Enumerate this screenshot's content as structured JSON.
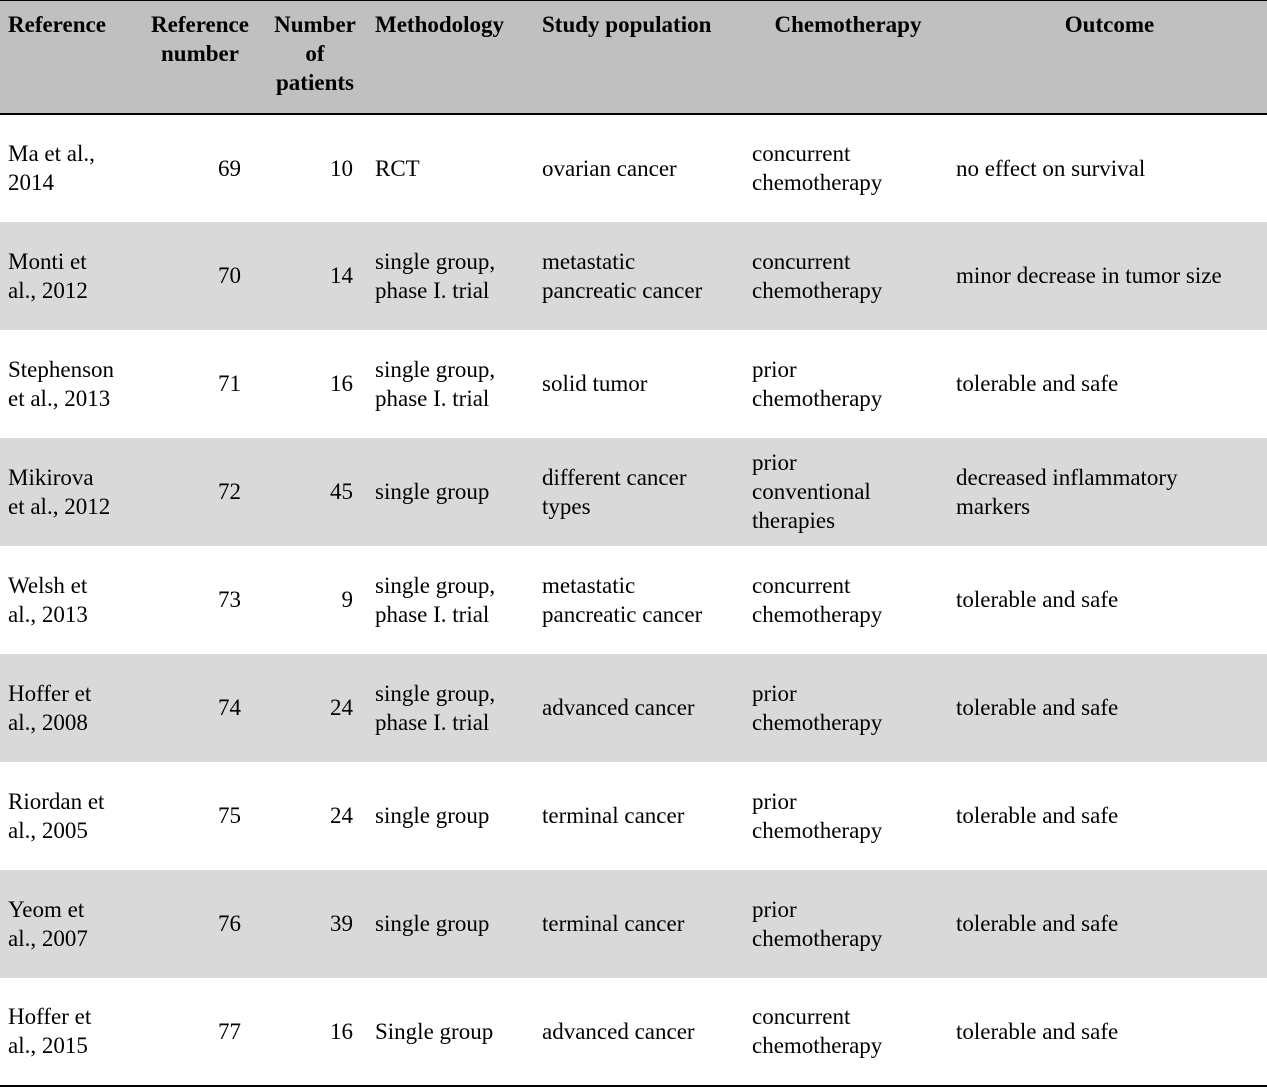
{
  "table": {
    "headers": {
      "reference": "Reference",
      "reference_number_line1": "Reference",
      "reference_number_line2": "number",
      "patients_line1": "Number",
      "patients_line2": "of",
      "patients_line3": "patients",
      "methodology": "Methodology",
      "study_population": "Study population",
      "chemotherapy": "Chemotherapy",
      "outcome": "Outcome"
    },
    "colors": {
      "header_bg": "#c0c0c0",
      "shaded_row_bg": "#d9d9d9",
      "plain_row_bg": "#ffffff"
    },
    "rows": [
      {
        "reference": [
          "Ma et al.,",
          "2014"
        ],
        "ref_number": "69",
        "patients": "10",
        "methodology": [
          "RCT"
        ],
        "population": [
          "ovarian cancer"
        ],
        "chemotherapy": [
          "concurrent",
          "chemotherapy"
        ],
        "outcome": [
          "no effect on survival"
        ]
      },
      {
        "reference": [
          "Monti et",
          "al., 2012"
        ],
        "ref_number": "70",
        "patients": "14",
        "methodology": [
          "single group,",
          "phase I. trial"
        ],
        "population": [
          "metastatic",
          "pancreatic cancer"
        ],
        "chemotherapy": [
          "concurrent",
          "chemotherapy"
        ],
        "outcome": [
          "minor decrease in tumor size"
        ]
      },
      {
        "reference": [
          "Stephenson",
          "et al., 2013"
        ],
        "ref_number": "71",
        "patients": "16",
        "methodology": [
          "single group,",
          "phase I. trial"
        ],
        "population": [
          "solid tumor"
        ],
        "chemotherapy": [
          "prior",
          "chemotherapy"
        ],
        "outcome": [
          "tolerable and safe"
        ]
      },
      {
        "reference": [
          "Mikirova",
          "et al., 2012"
        ],
        "ref_number": "72",
        "patients": "45",
        "methodology": [
          "single group"
        ],
        "population": [
          "different cancer",
          "types"
        ],
        "chemotherapy": [
          "prior",
          "conventional",
          "therapies"
        ],
        "outcome": [
          "decreased inflammatory",
          "markers"
        ]
      },
      {
        "reference": [
          "Welsh et",
          "al., 2013"
        ],
        "ref_number": "73",
        "patients": "9",
        "methodology": [
          "single group,",
          "phase I. trial"
        ],
        "population": [
          "metastatic",
          "pancreatic cancer"
        ],
        "chemotherapy": [
          "concurrent",
          "chemotherapy"
        ],
        "outcome": [
          "tolerable and safe"
        ]
      },
      {
        "reference": [
          "Hoffer et",
          "al., 2008"
        ],
        "ref_number": "74",
        "patients": "24",
        "methodology": [
          "single group,",
          "phase I. trial"
        ],
        "population": [
          "advanced cancer"
        ],
        "chemotherapy": [
          "prior",
          "chemotherapy"
        ],
        "outcome": [
          "tolerable and safe"
        ]
      },
      {
        "reference": [
          "Riordan et",
          "al., 2005"
        ],
        "ref_number": "75",
        "patients": "24",
        "methodology": [
          "single group"
        ],
        "population": [
          "terminal cancer"
        ],
        "chemotherapy": [
          "prior",
          "chemotherapy"
        ],
        "outcome": [
          "tolerable and safe"
        ]
      },
      {
        "reference": [
          "Yeom et",
          "al., 2007"
        ],
        "ref_number": "76",
        "patients": "39",
        "methodology": [
          "single group"
        ],
        "population": [
          "terminal cancer"
        ],
        "chemotherapy": [
          "prior",
          "chemotherapy"
        ],
        "outcome": [
          "tolerable and safe"
        ]
      },
      {
        "reference": [
          "Hoffer et",
          "al., 2015"
        ],
        "ref_number": "77",
        "patients": "16",
        "methodology": [
          "Single group"
        ],
        "population": [
          "advanced cancer"
        ],
        "chemotherapy": [
          "concurrent",
          "chemotherapy"
        ],
        "outcome": [
          "tolerable and safe"
        ]
      }
    ]
  }
}
